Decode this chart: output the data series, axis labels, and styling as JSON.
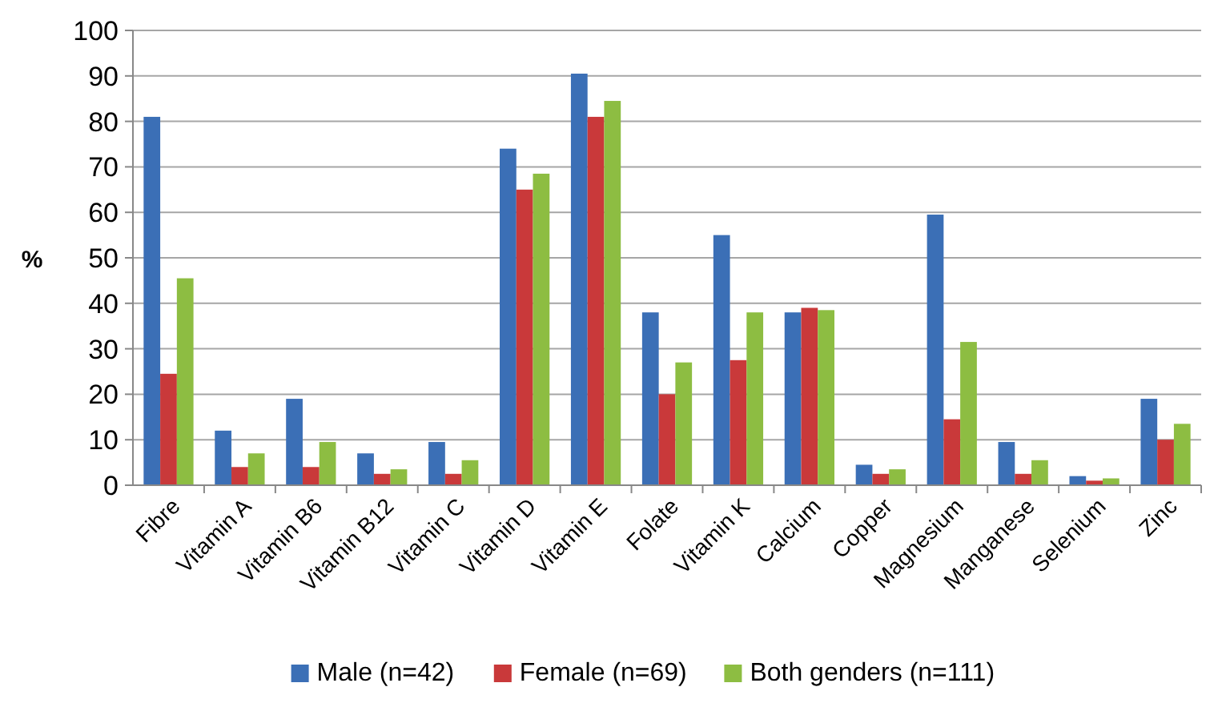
{
  "chart_data": {
    "type": "bar",
    "ylabel": "%",
    "categories": [
      "Fibre",
      "Vitamin A",
      "Vitamin B6",
      "Vitamin B12",
      "Vitamin C",
      "Vitamin D",
      "Vitamin E",
      "Folate",
      "Vitamin K",
      "Calcium",
      "Copper",
      "Magnesium",
      "Manganese",
      "Selenium",
      "Zinc"
    ],
    "series": [
      {
        "name": "Male (n=42)",
        "color": "#3b6fb6",
        "values": [
          81,
          12,
          19,
          7,
          9.5,
          74,
          90.5,
          38,
          55,
          38,
          4.5,
          59.5,
          9.5,
          2,
          19
        ]
      },
      {
        "name": "Female (n=69)",
        "color": "#c9393a",
        "values": [
          24.5,
          4,
          4,
          2.5,
          2.5,
          65,
          81,
          20,
          27.5,
          39,
          2.5,
          14.5,
          2.5,
          1,
          10
        ]
      },
      {
        "name": "Both genders (n=111)",
        "color": "#8dbd42",
        "values": [
          45.5,
          7,
          9.5,
          3.5,
          5.5,
          68.5,
          84.5,
          27,
          38,
          38.5,
          3.5,
          31.5,
          5.5,
          1.5,
          13.5
        ]
      }
    ],
    "ylim": [
      0,
      100
    ],
    "yticks": [
      0,
      10,
      20,
      30,
      40,
      50,
      60,
      70,
      80,
      90,
      100
    ],
    "grid": "y",
    "legend": "bottom"
  }
}
